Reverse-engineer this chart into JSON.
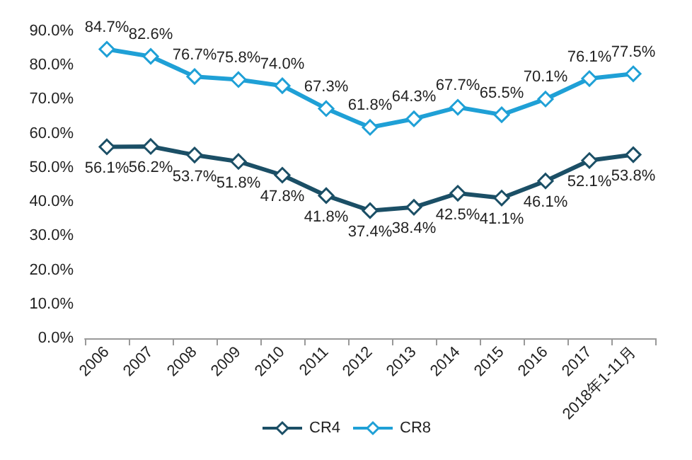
{
  "chart_data": {
    "type": "line",
    "categories": [
      "2006",
      "2007",
      "2008",
      "2009",
      "2010",
      "2011",
      "2012",
      "2013",
      "2014",
      "2015",
      "2016",
      "2017",
      "2018年1-11月"
    ],
    "series": [
      {
        "name": "CR4",
        "color": "#1b4f66",
        "values": [
          56.1,
          56.2,
          53.7,
          51.8,
          47.8,
          41.8,
          37.4,
          38.4,
          42.5,
          41.1,
          46.1,
          52.1,
          53.8
        ],
        "value_labels": [
          "56.1%",
          "56.2%",
          "53.7%",
          "51.8%",
          "47.8%",
          "41.8%",
          "37.4%",
          "38.4%",
          "42.5%",
          "41.1%",
          "46.1%",
          "52.1%",
          "53.8%"
        ]
      },
      {
        "name": "CR8",
        "color": "#1fa0d6",
        "values": [
          84.7,
          82.6,
          76.7,
          75.8,
          74.0,
          67.3,
          61.8,
          64.3,
          67.7,
          65.5,
          70.1,
          76.1,
          77.5
        ],
        "value_labels": [
          "84.7%",
          "82.6%",
          "76.7%",
          "75.8%",
          "74.0%",
          "67.3%",
          "61.8%",
          "64.3%",
          "67.7%",
          "65.5%",
          "70.1%",
          "76.1%",
          "77.5%"
        ]
      }
    ],
    "ylim": [
      0,
      90
    ],
    "yticks": [
      {
        "value": 0,
        "label": "0.0%"
      },
      {
        "value": 10,
        "label": "10.0%"
      },
      {
        "value": 20,
        "label": "20.0%"
      },
      {
        "value": 30,
        "label": "30.0%"
      },
      {
        "value": 40,
        "label": "40.0%"
      },
      {
        "value": 50,
        "label": "50.0%"
      },
      {
        "value": 60,
        "label": "60.0%"
      },
      {
        "value": 70,
        "label": "70.0%"
      },
      {
        "value": 80,
        "label": "80.0%"
      },
      {
        "value": 90,
        "label": "90.0%"
      }
    ],
    "grid": false,
    "legend": "bottom",
    "marker": "diamond",
    "line_style": "solid"
  }
}
